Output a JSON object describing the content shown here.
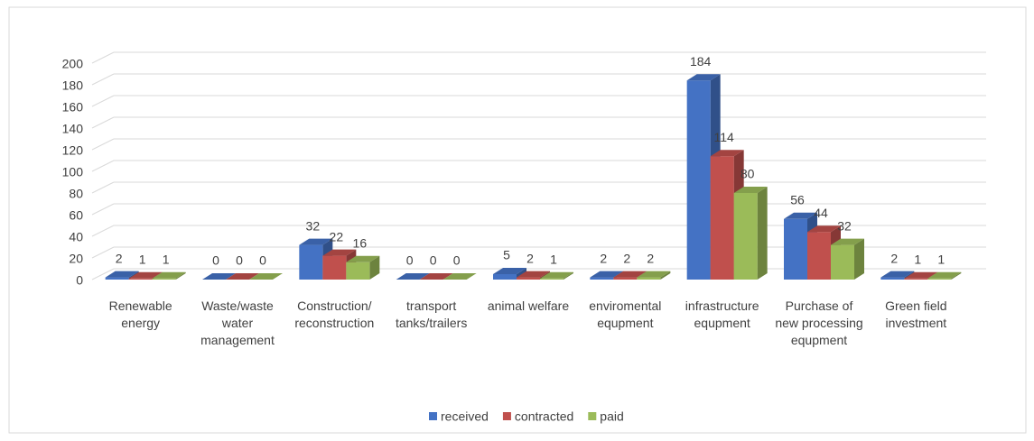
{
  "chart_data": {
    "type": "bar3d",
    "categories": [
      "Renewable energy",
      "Waste/waste water management",
      "Construction/ reconstruction",
      "transport tanks/trailers",
      "animal welfare",
      "enviromental equpment",
      "infrastructure equpment",
      "Purchase of new processing equpment",
      "Green field investment"
    ],
    "series": [
      {
        "name": "received",
        "color": "#4472c4",
        "values": [
          2,
          0,
          32,
          0,
          5,
          2,
          184,
          56,
          2
        ]
      },
      {
        "name": "contracted",
        "color": "#c0504d",
        "values": [
          1,
          0,
          22,
          0,
          2,
          2,
          114,
          44,
          1
        ]
      },
      {
        "name": "paid",
        "color": "#9bbb59",
        "values": [
          1,
          0,
          16,
          0,
          1,
          2,
          80,
          32,
          1
        ]
      }
    ],
    "ylim": [
      0,
      200
    ],
    "yticks": [
      0,
      20,
      40,
      60,
      80,
      100,
      120,
      140,
      160,
      180,
      200
    ],
    "grid": true,
    "legend": "bottom"
  }
}
